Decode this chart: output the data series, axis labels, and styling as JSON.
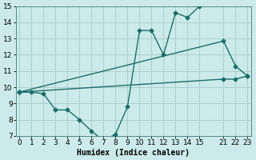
{
  "xlabel": "Humidex (Indice chaleur)",
  "bg_color": "#cceaea",
  "grid_color": "#aacece",
  "line_color": "#1a6e6a",
  "line_width": 1.0,
  "marker": "D",
  "marker_size": 2.5,
  "ylim": [
    7,
    15
  ],
  "yticks": [
    7,
    8,
    9,
    10,
    11,
    12,
    13,
    14,
    15
  ],
  "xtick_labels": [
    "0",
    "1",
    "2",
    "3",
    "4",
    "5",
    "6",
    "7",
    "8",
    "9",
    "10",
    "11",
    "12",
    "13",
    "14",
    "15",
    "21",
    "22",
    "23"
  ],
  "xtick_vals": [
    0,
    1,
    2,
    3,
    4,
    5,
    6,
    7,
    8,
    9,
    10,
    11,
    12,
    13,
    14,
    15,
    21,
    22,
    23
  ],
  "xlim": [
    0,
    23
  ],
  "curve1_x": [
    0,
    1,
    2,
    3,
    4,
    5,
    6,
    7,
    8,
    9,
    10,
    11,
    12,
    13,
    14,
    15
  ],
  "curve1_y": [
    9.7,
    9.7,
    9.6,
    8.6,
    8.6,
    8.0,
    7.3,
    6.7,
    7.1,
    8.8,
    13.5,
    13.5,
    12.0,
    14.6,
    14.3,
    15.0
  ],
  "curve2_x": [
    0,
    21,
    22,
    23
  ],
  "curve2_y": [
    9.7,
    12.85,
    11.3,
    10.7
  ],
  "curve3_x": [
    0,
    21,
    22,
    23
  ],
  "curve3_y": [
    9.7,
    10.5,
    10.5,
    10.7
  ],
  "fontsize_label": 7,
  "fontsize_tick": 6.5
}
